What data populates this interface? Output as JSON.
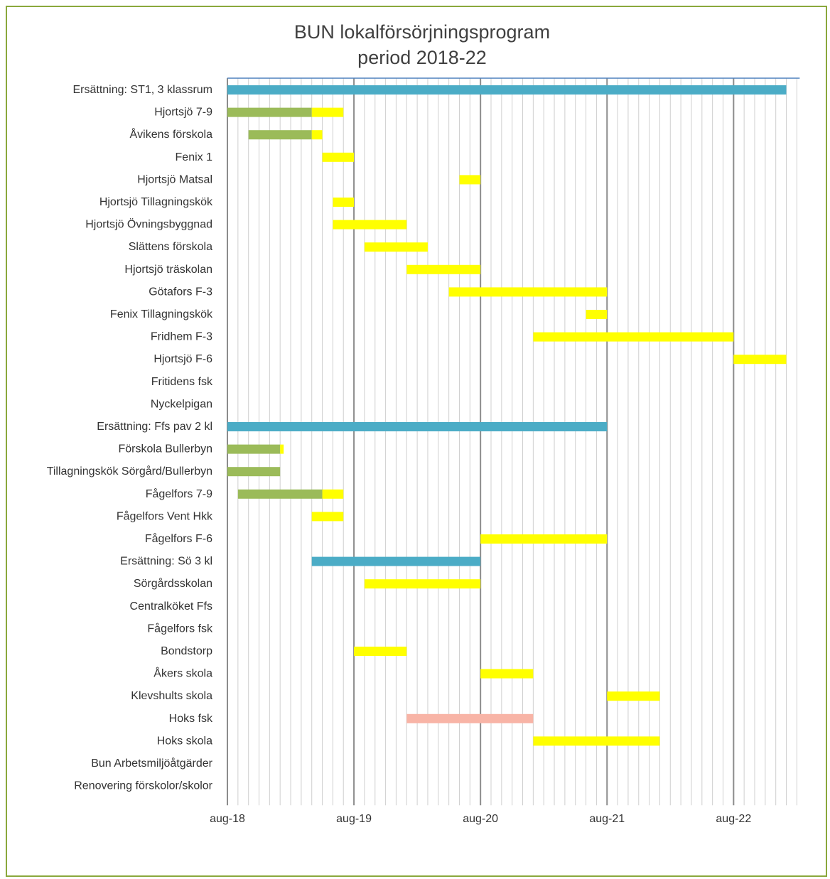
{
  "chart_data": {
    "type": "bar",
    "subtype": "gantt",
    "title_lines": [
      "BUN lokalförsörjningsprogram",
      "period 2018-22"
    ],
    "x_axis": {
      "ticks": [
        "aug-18",
        "aug-19",
        "aug-20",
        "aug-21",
        "aug-22"
      ],
      "range_months": [
        0,
        54
      ],
      "month_gridlines": true
    },
    "colors": {
      "replacement": "#4bacc6",
      "planning": "#9bbb59",
      "construction": "#ffff00",
      "other": "#f8b4a6",
      "border": "#8aa83c",
      "axis_top": "#4f81bd"
    },
    "categories": [
      "Ersättning: ST1, 3 klassrum",
      "Hjortsjö 7-9",
      "Åvikens förskola",
      "Fenix 1",
      "Hjortsjö Matsal",
      "Hjortsjö Tillagningskök",
      "Hjortsjö Övningsbyggnad",
      "Slättens förskola",
      "Hjortsjö träskolan",
      "Götafors F-3",
      "Fenix Tillagningskök",
      "Fridhem F-3",
      "Hjortsjö F-6",
      "Fritidens fsk",
      "Nyckelpigan",
      "Ersättning: Ffs pav 2 kl",
      "Förskola Bullerbyn",
      "Tillagningskök Sörgård/Bullerbyn",
      "Fågelfors 7-9",
      "Fågelfors Vent Hkk",
      "Fågelfors F-6",
      "Ersättning: Sö 3 kl",
      "Sörgårdsskolan",
      "Centralköket Ffs",
      "Fågelfors fsk",
      "Bondstorp",
      "Åkers skola",
      "Klevshults skola",
      "Hoks fsk",
      "Hoks skola",
      "Bun Arbetsmiljöåtgärder",
      "Renovering förskolor/skolor"
    ],
    "segments": [
      {
        "row": 0,
        "start": "2018-08",
        "end": "2023-01",
        "color": "#4bacc6"
      },
      {
        "row": 1,
        "start": "2018-08",
        "end": "2019-04",
        "color": "#9bbb59"
      },
      {
        "row": 1,
        "start": "2019-04",
        "end": "2019-07",
        "color": "#ffff00"
      },
      {
        "row": 2,
        "start": "2018-10",
        "end": "2019-04",
        "color": "#9bbb59"
      },
      {
        "row": 2,
        "start": "2019-04",
        "end": "2019-05",
        "color": "#ffff00"
      },
      {
        "row": 3,
        "start": "2019-05",
        "end": "2019-08",
        "color": "#ffff00"
      },
      {
        "row": 4,
        "start": "2020-06",
        "end": "2020-08",
        "color": "#ffff00"
      },
      {
        "row": 5,
        "start": "2019-06",
        "end": "2019-08",
        "color": "#ffff00"
      },
      {
        "row": 6,
        "start": "2019-06",
        "end": "2020-01",
        "color": "#ffff00"
      },
      {
        "row": 7,
        "start": "2019-09",
        "end": "2020-03",
        "color": "#ffff00"
      },
      {
        "row": 8,
        "start": "2020-01",
        "end": "2020-08",
        "color": "#ffff00"
      },
      {
        "row": 9,
        "start": "2020-05",
        "end": "2021-08",
        "color": "#ffff00"
      },
      {
        "row": 10,
        "start": "2021-06",
        "end": "2021-08",
        "color": "#ffff00"
      },
      {
        "row": 11,
        "start": "2021-01",
        "end": "2022-08",
        "color": "#ffff00"
      },
      {
        "row": 12,
        "start": "2022-08",
        "end": "2023-01",
        "color": "#ffff00"
      },
      {
        "row": 15,
        "start": "2018-08",
        "end": "2021-08",
        "color": "#4bacc6"
      },
      {
        "row": 16,
        "start": "2018-08",
        "end": "2019-01",
        "color": "#9bbb59"
      },
      {
        "row": 16,
        "start": "2019-01",
        "end": "2019-01",
        "color": "#ffff00"
      },
      {
        "row": 17,
        "start": "2018-08",
        "end": "2019-01",
        "color": "#9bbb59"
      },
      {
        "row": 18,
        "start": "2018-09",
        "end": "2019-05",
        "color": "#9bbb59"
      },
      {
        "row": 18,
        "start": "2019-05",
        "end": "2019-07",
        "color": "#ffff00"
      },
      {
        "row": 19,
        "start": "2019-04",
        "end": "2019-07",
        "color": "#ffff00"
      },
      {
        "row": 20,
        "start": "2020-08",
        "end": "2021-08",
        "color": "#ffff00"
      },
      {
        "row": 21,
        "start": "2019-04",
        "end": "2020-08",
        "color": "#4bacc6"
      },
      {
        "row": 22,
        "start": "2019-09",
        "end": "2020-08",
        "color": "#ffff00"
      },
      {
        "row": 25,
        "start": "2019-08",
        "end": "2020-01",
        "color": "#ffff00"
      },
      {
        "row": 26,
        "start": "2020-08",
        "end": "2021-01",
        "color": "#ffff00"
      },
      {
        "row": 27,
        "start": "2021-08",
        "end": "2022-01",
        "color": "#ffff00"
      },
      {
        "row": 28,
        "start": "2020-01",
        "end": "2021-01",
        "color": "#f8b4a6"
      },
      {
        "row": 29,
        "start": "2021-01",
        "end": "2022-01",
        "color": "#ffff00"
      }
    ]
  }
}
